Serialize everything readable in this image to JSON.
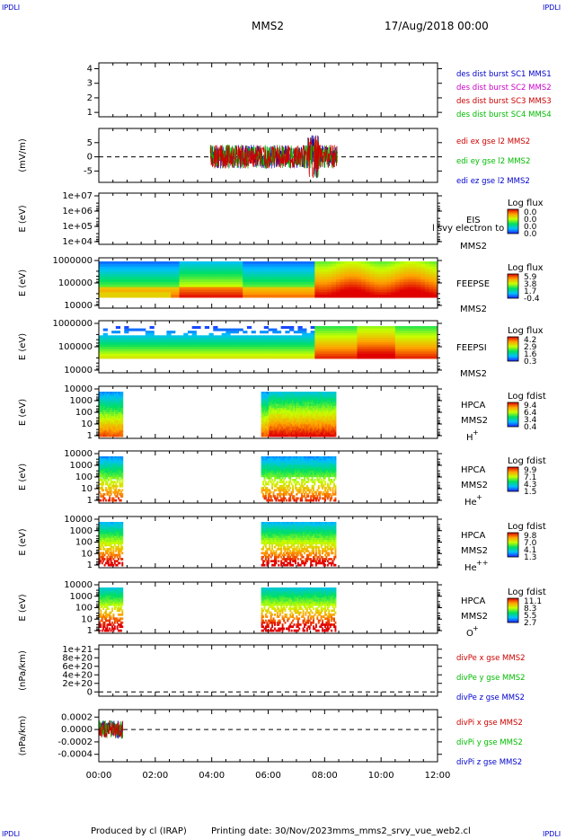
{
  "header": {
    "corner_label": "IPDLI",
    "title": "MMS2",
    "datetime": "17/Aug/2018 00:00"
  },
  "footer": {
    "produced_by": "Produced by cl (IRAP)",
    "printing_date": "Printing date: 30/Nov/2023",
    "script_name": "mms_mms2_srvy_vue_web2.cl"
  },
  "colors": {
    "blue": "#0000cc",
    "magenta": "#cc00cc",
    "red": "#cc0000",
    "green": "#00bb00",
    "axis": "#000000"
  },
  "chart_data": [
    {
      "type": "line",
      "ylabel": "",
      "yticks": [
        "1",
        "2",
        "3",
        "4"
      ],
      "ylim": [
        0.7,
        4.4
      ],
      "legend": [
        {
          "text": "des dist burst SC1 MMS1",
          "color": "blue"
        },
        {
          "text": "des dist burst SC2 MMS2",
          "color": "magenta"
        },
        {
          "text": "des dist burst SC3 MMS3",
          "color": "red"
        },
        {
          "text": "des dist burst SC4 MMS4",
          "color": "green"
        }
      ]
    },
    {
      "type": "line",
      "ylabel": "(mV/m)",
      "yticks": [
        "5",
        "0",
        "-5"
      ],
      "ylim": [
        -9,
        10
      ],
      "zero_line": true,
      "time_range_h": [
        3.95,
        8.45
      ],
      "legend": [
        {
          "text": "edi ex gse l2 MMS2",
          "color": "red"
        },
        {
          "text": "edi ey gse l2 MMS2",
          "color": "green"
        },
        {
          "text": "edi ez gse l2 MMS2",
          "color": "blue"
        }
      ]
    },
    {
      "type": "heatmap",
      "ylabel": "E (eV)",
      "yticks": [
        "1e+07",
        "1e+06",
        "1e+05",
        "1e+04"
      ],
      "instrument": "EIS",
      "overlay_text": "l svy electron to",
      "sc": "MMS2",
      "colorbar_title": "Log flux",
      "colorbar_ticks": [
        "0.0",
        "0.0",
        "0.0",
        "0.0"
      ]
    },
    {
      "type": "heatmap",
      "ylabel": "E (eV)",
      "yticks": [
        "1000000",
        "100000",
        "10000"
      ],
      "instrument": "FEEPSE",
      "sc": "MMS2",
      "colorbar_title": "Log flux",
      "colorbar_ticks": [
        "5.9",
        "3.8",
        "1.7",
        "-0.4"
      ],
      "time_range_h": [
        0,
        12
      ]
    },
    {
      "type": "heatmap",
      "ylabel": "E (eV)",
      "yticks": [
        "1000000",
        "100000",
        "10000"
      ],
      "instrument": "FEEPSI",
      "sc": "MMS2",
      "colorbar_title": "Log flux",
      "colorbar_ticks": [
        "4.2",
        "2.9",
        "1.6",
        "0.3"
      ],
      "time_range_h": [
        0,
        12
      ]
    },
    {
      "type": "heatmap",
      "ylabel": "E (eV)",
      "yticks": [
        "10000",
        "1000",
        "100",
        "10",
        "1"
      ],
      "instrument": "HPCA",
      "sc": "MMS2",
      "species": "H",
      "species_sup": "+",
      "colorbar_title": "Log fdist",
      "colorbar_ticks": [
        "9.4",
        "6.4",
        "3.4",
        "0.4"
      ],
      "intervals_h": [
        [
          0,
          0.85
        ],
        [
          5.75,
          8.4
        ]
      ]
    },
    {
      "type": "heatmap",
      "ylabel": "E (eV)",
      "yticks": [
        "10000",
        "1000",
        "100",
        "10",
        "1"
      ],
      "instrument": "HPCA",
      "sc": "MMS2",
      "species": "He",
      "species_sup": "+",
      "colorbar_title": "Log fdist",
      "colorbar_ticks": [
        "9.9",
        "7.1",
        "4.3",
        "1.5"
      ],
      "intervals_h": [
        [
          0,
          0.85
        ],
        [
          5.75,
          8.4
        ]
      ]
    },
    {
      "type": "heatmap",
      "ylabel": "E (eV)",
      "yticks": [
        "10000",
        "1000",
        "100",
        "10",
        "1"
      ],
      "instrument": "HPCA",
      "sc": "MMS2",
      "species": "He",
      "species_sup": "++",
      "colorbar_title": "Log fdist",
      "colorbar_ticks": [
        "9.8",
        "7.0",
        "4.1",
        "1.3"
      ],
      "intervals_h": [
        [
          0,
          0.85
        ],
        [
          5.75,
          8.4
        ]
      ]
    },
    {
      "type": "heatmap",
      "ylabel": "E (eV)",
      "yticks": [
        "10000",
        "1000",
        "100",
        "10",
        "1"
      ],
      "instrument": "HPCA",
      "sc": "MMS2",
      "species": "O",
      "species_sup": "+",
      "colorbar_title": "Log fdist",
      "colorbar_ticks": [
        "11.1",
        "8.3",
        "5.5",
        "2.7"
      ],
      "intervals_h": [
        [
          0,
          0.85
        ],
        [
          5.75,
          8.4
        ]
      ]
    },
    {
      "type": "line",
      "ylabel": "(nPa/km)",
      "yticks": [
        "1e+21",
        "8e+20",
        "6e+20",
        "4e+20",
        "2e+20",
        "0"
      ],
      "ylim": [
        -1e+20,
        1.1e+21
      ],
      "zero_line": true,
      "legend": [
        {
          "text": "divPe x gse MMS2",
          "color": "red"
        },
        {
          "text": "divPe y gse MMS2",
          "color": "green"
        },
        {
          "text": "divPe z gse MMS2",
          "color": "blue"
        }
      ]
    },
    {
      "type": "line",
      "ylabel": "(nPa/km)",
      "yticks": [
        "0.0002",
        "0.0000",
        "-0.0002",
        "-0.0004"
      ],
      "ylim": [
        -0.00052,
        0.00032
      ],
      "zero_line": true,
      "time_range_h": [
        0,
        0.85
      ],
      "legend": [
        {
          "text": "divPi x gse MMS2",
          "color": "red"
        },
        {
          "text": "divPi y gse MMS2",
          "color": "green"
        },
        {
          "text": "divPi z gse MMS2",
          "color": "blue"
        }
      ]
    }
  ],
  "xaxis": {
    "ticks": [
      "00:00",
      "02:00",
      "04:00",
      "06:00",
      "08:00",
      "10:00",
      "12:00"
    ],
    "range_h": [
      0,
      12
    ]
  }
}
